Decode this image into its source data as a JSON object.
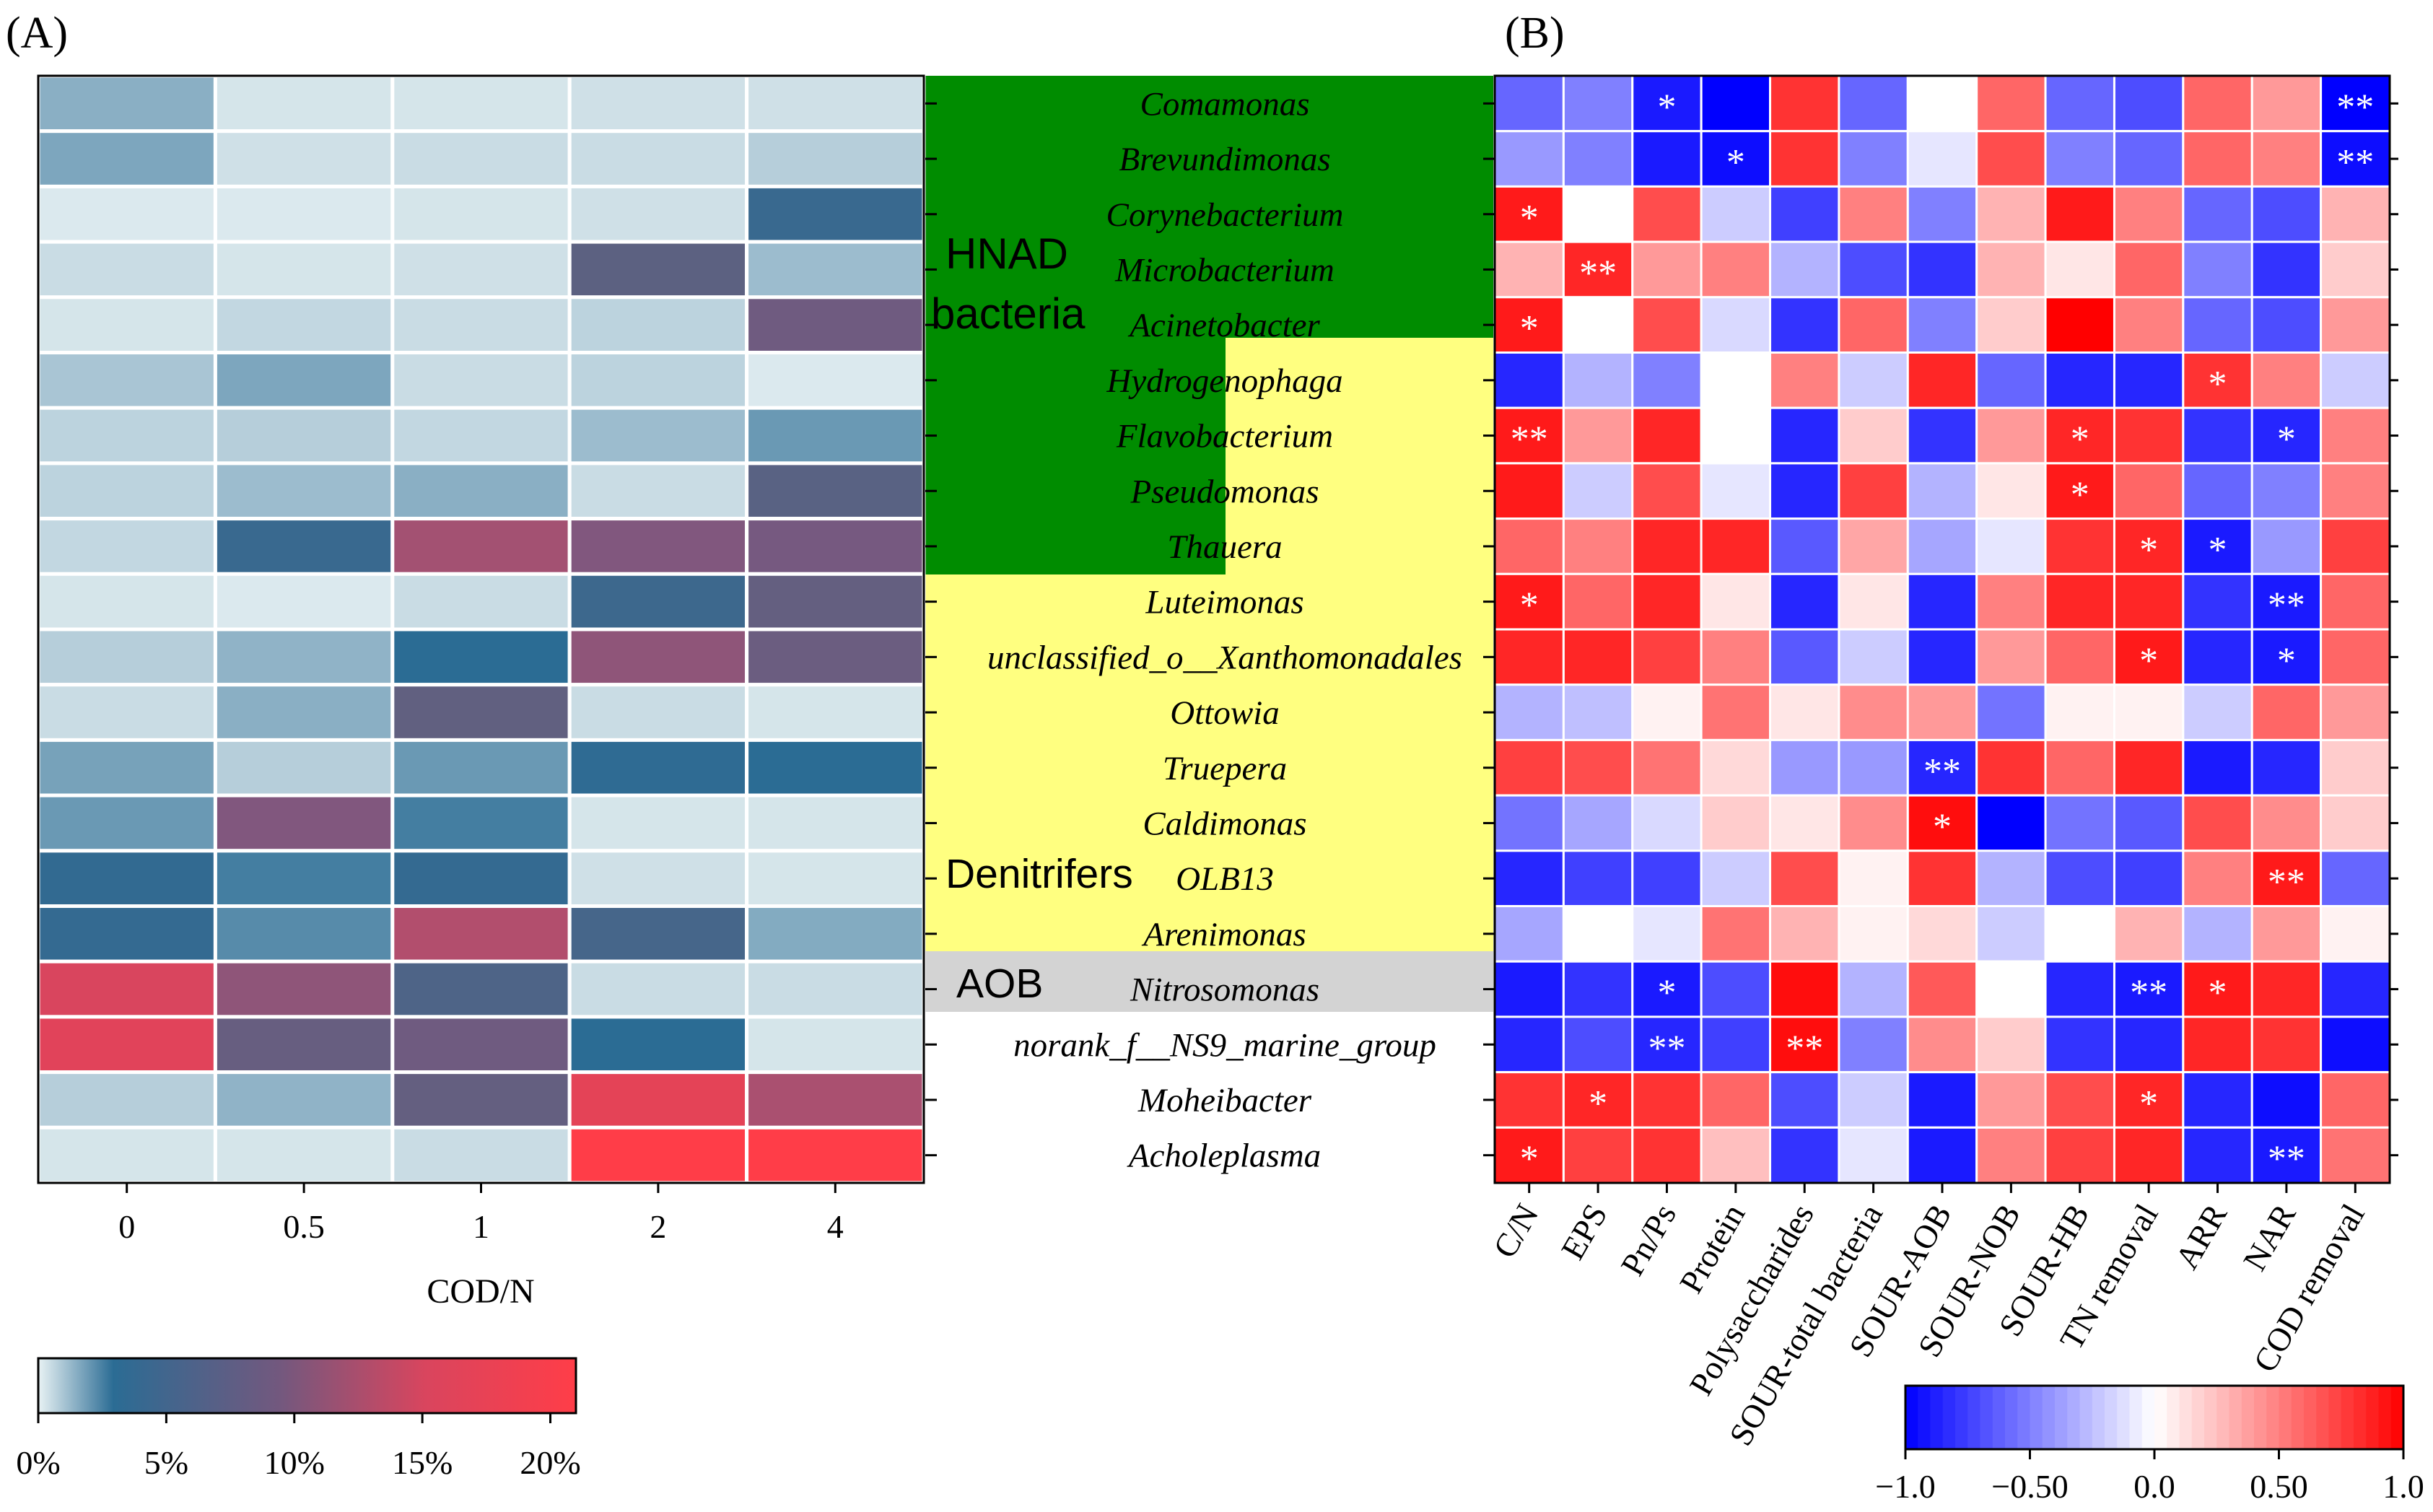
{
  "panel_a_label": "(A)",
  "panel_b_label": "(B)",
  "group_labels": {
    "hnad_line1": "HNAD",
    "hnad_line2": "bacteria",
    "denitrifiers": "Denitrifers",
    "aob": "AOB"
  },
  "colors": {
    "green": "#008c00",
    "yellow": "#ffff80",
    "gray": "#d3d3d3"
  },
  "chart_data": [
    {
      "type": "heatmap",
      "name": "abundance-heatmap",
      "xlabel": "COD/N",
      "categories": [
        "0",
        "0.5",
        "1",
        "2",
        "4"
      ],
      "rows": [
        "Comamonas",
        "Brevundimonas",
        "Corynebacterium",
        "Microbacterium",
        "Acinetobacter",
        "Hydrogenophaga",
        "Flavobacterium",
        "Pseudomonas",
        "Thauera",
        "Luteimonas",
        "unclassified_o__Xanthomonadales",
        "Ottowia",
        "Truepera",
        "Caldimonas",
        "OLB13",
        "Arenimonas",
        "Nitrosomonas",
        "norank_f__NS9_marine_group",
        "Moheibacter",
        "Acholeplasma"
      ],
      "values_percent": [
        [
          1.5,
          0.3,
          0.3,
          0.4,
          0.4
        ],
        [
          1.7,
          0.4,
          0.5,
          0.5,
          0.8
        ],
        [
          0.2,
          0.2,
          0.3,
          0.4,
          3.8
        ],
        [
          0.5,
          0.3,
          0.4,
          5.8,
          1.2
        ],
        [
          0.3,
          0.6,
          0.5,
          0.7,
          8.0
        ],
        [
          1.0,
          1.7,
          0.5,
          0.7,
          0.2
        ],
        [
          0.7,
          0.8,
          0.6,
          1.2,
          2.0
        ],
        [
          0.7,
          1.2,
          1.5,
          0.5,
          5.6
        ],
        [
          0.6,
          3.8,
          12.5,
          10.0,
          9.0
        ],
        [
          0.3,
          0.2,
          0.5,
          4.0,
          6.5
        ],
        [
          0.8,
          1.4,
          3.0,
          11.0,
          7.5
        ],
        [
          0.5,
          1.5,
          6.2,
          0.5,
          0.3
        ],
        [
          1.8,
          0.8,
          2.0,
          3.2,
          3.0
        ],
        [
          2.0,
          10.0,
          2.6,
          0.3,
          0.3
        ],
        [
          3.4,
          2.6,
          3.5,
          0.4,
          0.3
        ],
        [
          3.5,
          2.3,
          13.5,
          4.5,
          1.6
        ],
        [
          16.0,
          11.0,
          5.0,
          0.5,
          0.5
        ],
        [
          17.0,
          7.0,
          8.0,
          3.0,
          0.3
        ],
        [
          0.8,
          1.4,
          6.5,
          17.5,
          13.0
        ],
        [
          0.3,
          0.3,
          0.5,
          21.0,
          21.0
        ]
      ],
      "colorbar": {
        "ticks": [
          "0%",
          "5%",
          "10%",
          "15%",
          "20%"
        ],
        "range": [
          0,
          21
        ]
      }
    },
    {
      "type": "heatmap",
      "name": "correlation-heatmap",
      "columns": [
        "C/N",
        "EPS",
        "Pn/Ps",
        "Protein",
        "Polysaccharides",
        "SOUR-total bacteria",
        "SOUR-AOB",
        "SOUR-NOB",
        "SOUR-HB",
        "TN removal",
        "ARR",
        "NAR",
        "COD removal"
      ],
      "rows": [
        "Comamonas",
        "Brevundimonas",
        "Corynebacterium",
        "Microbacterium",
        "Acinetobacter",
        "Hydrogenophaga",
        "Flavobacterium",
        "Pseudomonas",
        "Thauera",
        "Luteimonas",
        "unclassified_o__Xanthomonadales",
        "Ottowia",
        "Truepera",
        "Caldimonas",
        "OLB13",
        "Arenimonas",
        "Nitrosomonas",
        "norank_f__NS9_marine_group",
        "Moheibacter",
        "Acholeplasma"
      ],
      "values": [
        [
          -0.6,
          -0.5,
          -0.9,
          -1.0,
          0.8,
          -0.6,
          0.0,
          0.6,
          -0.6,
          -0.7,
          0.6,
          0.4,
          -1.0
        ],
        [
          -0.4,
          -0.5,
          -0.9,
          -0.95,
          0.8,
          -0.5,
          -0.1,
          0.7,
          -0.5,
          -0.6,
          0.6,
          0.5,
          -0.95
        ],
        [
          0.9,
          0.0,
          0.7,
          -0.2,
          -0.75,
          0.5,
          -0.5,
          0.3,
          0.9,
          0.5,
          -0.6,
          -0.7,
          0.3
        ],
        [
          0.3,
          0.85,
          0.4,
          0.5,
          -0.3,
          -0.7,
          -0.8,
          0.3,
          0.1,
          0.6,
          -0.5,
          -0.8,
          0.2
        ],
        [
          0.9,
          0.0,
          0.7,
          -0.15,
          -0.8,
          0.6,
          -0.5,
          0.2,
          1.0,
          0.5,
          -0.6,
          -0.7,
          0.4
        ],
        [
          -0.85,
          -0.3,
          -0.5,
          0.0,
          0.5,
          -0.2,
          0.85,
          -0.6,
          -0.85,
          -0.85,
          0.8,
          0.5,
          -0.2
        ],
        [
          0.9,
          0.4,
          0.85,
          0.0,
          -0.85,
          0.2,
          -0.8,
          0.4,
          0.85,
          0.8,
          -0.8,
          -0.85,
          0.5
        ],
        [
          0.9,
          -0.2,
          0.7,
          -0.1,
          -0.85,
          0.75,
          -0.3,
          0.1,
          0.9,
          0.6,
          -0.6,
          -0.5,
          0.5
        ],
        [
          0.6,
          0.5,
          0.85,
          0.85,
          -0.65,
          0.35,
          -0.35,
          -0.1,
          0.8,
          0.85,
          -0.9,
          -0.4,
          0.75
        ],
        [
          0.9,
          0.6,
          0.85,
          0.1,
          -0.85,
          0.1,
          -0.85,
          0.5,
          0.85,
          0.85,
          -0.8,
          -0.9,
          0.6
        ],
        [
          0.85,
          0.85,
          0.75,
          0.5,
          -0.65,
          -0.2,
          -0.85,
          0.4,
          0.6,
          0.9,
          -0.85,
          -0.9,
          0.6
        ],
        [
          -0.3,
          -0.25,
          0.05,
          0.55,
          0.1,
          0.45,
          0.4,
          -0.55,
          0.05,
          0.05,
          -0.2,
          0.6,
          0.4
        ],
        [
          0.75,
          0.7,
          0.55,
          0.15,
          -0.4,
          -0.4,
          -0.85,
          0.8,
          0.6,
          0.85,
          -0.9,
          -0.85,
          0.2
        ],
        [
          -0.55,
          -0.35,
          -0.15,
          0.2,
          0.1,
          0.45,
          0.95,
          -1.0,
          -0.55,
          -0.65,
          0.7,
          0.45,
          0.2
        ],
        [
          -0.85,
          -0.75,
          -0.75,
          -0.2,
          0.7,
          0.05,
          0.8,
          -0.3,
          -0.7,
          -0.75,
          0.5,
          0.9,
          -0.6
        ],
        [
          -0.35,
          0.0,
          -0.1,
          0.55,
          0.3,
          0.05,
          0.15,
          -0.2,
          0.0,
          0.3,
          -0.3,
          0.4,
          0.05
        ],
        [
          -0.9,
          -0.8,
          -0.9,
          -0.7,
          0.95,
          -0.3,
          0.65,
          0.0,
          -0.85,
          -0.9,
          0.9,
          0.85,
          -0.85
        ],
        [
          -0.85,
          -0.7,
          -0.85,
          -0.75,
          0.95,
          -0.5,
          0.45,
          0.2,
          -0.8,
          -0.85,
          0.85,
          0.8,
          -0.95
        ],
        [
          0.8,
          0.85,
          0.8,
          0.6,
          -0.7,
          -0.2,
          -0.9,
          0.4,
          0.7,
          0.85,
          -0.85,
          -0.95,
          0.6
        ],
        [
          0.9,
          0.75,
          0.8,
          0.25,
          -0.8,
          -0.1,
          -0.9,
          0.5,
          0.75,
          0.85,
          -0.85,
          -0.9,
          0.55
        ]
      ],
      "significance": [
        [
          "",
          "",
          "*",
          "",
          "",
          "",
          "",
          "",
          "",
          "",
          "",
          "",
          "**"
        ],
        [
          "",
          "",
          "",
          "*",
          "",
          "",
          "",
          "",
          "",
          "",
          "",
          "",
          "**"
        ],
        [
          "*",
          "",
          "",
          "",
          "",
          "",
          "",
          "",
          "",
          "",
          "",
          "",
          ""
        ],
        [
          "",
          "**",
          "",
          "",
          "",
          "",
          "",
          "",
          "",
          "",
          "",
          "",
          ""
        ],
        [
          "*",
          "",
          "",
          "",
          "",
          "",
          "",
          "",
          "",
          "",
          "",
          "",
          ""
        ],
        [
          "",
          "",
          "",
          "",
          "",
          "",
          "",
          "",
          "",
          "",
          "*",
          "",
          ""
        ],
        [
          "**",
          "",
          "",
          "",
          "",
          "",
          "",
          "",
          "*",
          "",
          "",
          "*",
          ""
        ],
        [
          "",
          "",
          "",
          "",
          "",
          "",
          "",
          "",
          "*",
          "",
          "",
          "",
          ""
        ],
        [
          "",
          "",
          "",
          "",
          "",
          "",
          "",
          "",
          "",
          "*",
          "*",
          "",
          ""
        ],
        [
          "*",
          "",
          "",
          "",
          "",
          "",
          "",
          "",
          "",
          "",
          "",
          "**",
          ""
        ],
        [
          "",
          "",
          "",
          "",
          "",
          "",
          "",
          "",
          "",
          "*",
          "",
          "*",
          ""
        ],
        [
          "",
          "",
          "",
          "",
          "",
          "",
          "",
          "",
          "",
          "",
          "",
          "",
          ""
        ],
        [
          "",
          "",
          "",
          "",
          "",
          "",
          "**",
          "",
          "",
          "",
          "",
          "",
          ""
        ],
        [
          "",
          "",
          "",
          "",
          "",
          "",
          "*",
          "",
          "",
          "",
          "",
          "",
          ""
        ],
        [
          "",
          "",
          "",
          "",
          "",
          "",
          "",
          "",
          "",
          "",
          "",
          "**",
          ""
        ],
        [
          "",
          "",
          "",
          "",
          "",
          "",
          "",
          "",
          "",
          "",
          "",
          "",
          ""
        ],
        [
          "",
          "",
          "*",
          "",
          "",
          "",
          "",
          "",
          "",
          "**",
          "*",
          "",
          ""
        ],
        [
          "",
          "",
          "**",
          "",
          "**",
          "",
          "",
          "",
          "",
          "",
          "",
          "",
          ""
        ],
        [
          "",
          "*",
          "",
          "",
          "",
          "",
          "",
          "",
          "",
          "*",
          "",
          "",
          ""
        ],
        [
          "*",
          "",
          "",
          "",
          "",
          "",
          "",
          "",
          "",
          "",
          "",
          "**",
          ""
        ]
      ],
      "colorbar": {
        "ticks": [
          "−1.0",
          "−0.50",
          "0.0",
          "0.50",
          "1.0"
        ],
        "range": [
          -1,
          1
        ]
      }
    }
  ]
}
